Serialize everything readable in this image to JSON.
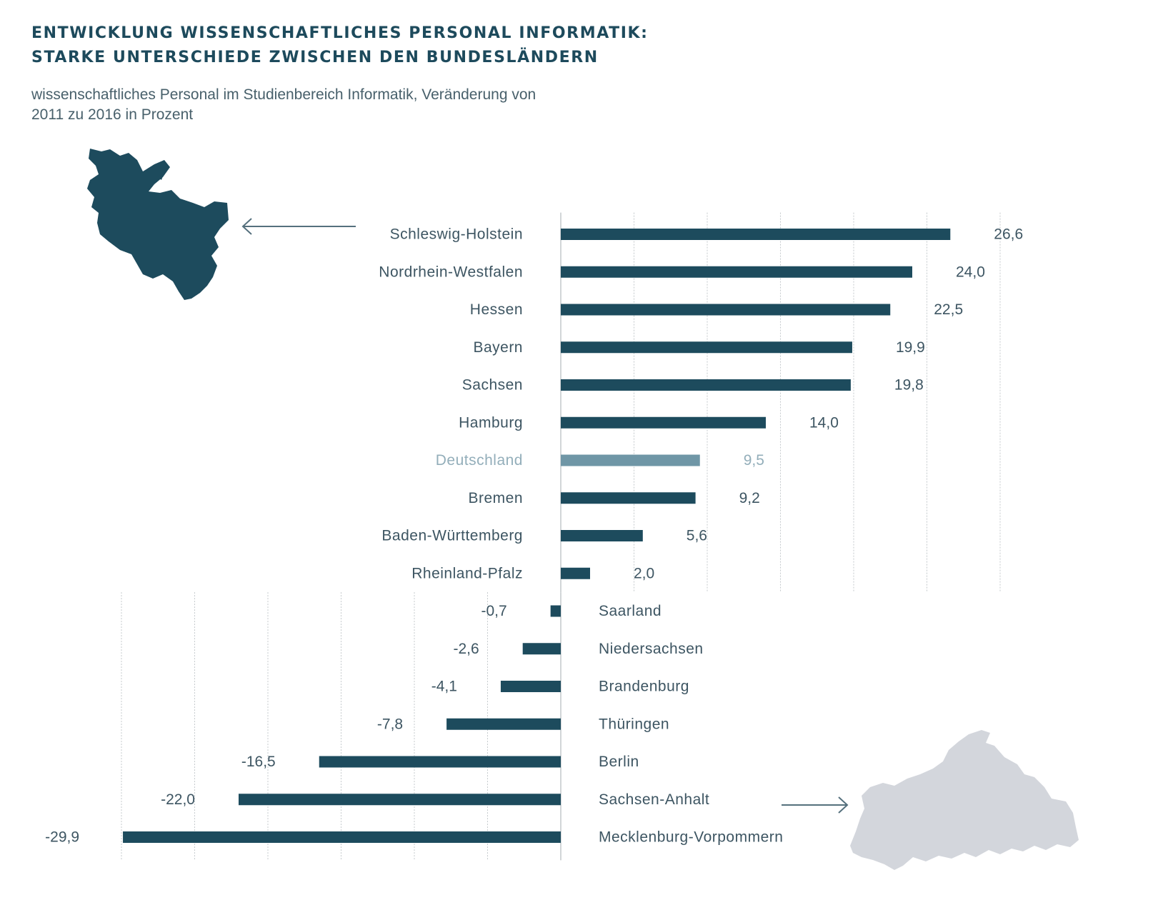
{
  "title_lines": [
    "ENTWICKLUNG WISSENSCHAFTLICHES PERSONAL INFORMATIK:",
    "STARKE UNTERSCHIEDE ZWISCHEN DEN BUNDESLÄNDERN"
  ],
  "subtitle_lines": [
    "wissenschaftliches Personal im Studienbereich Informatik, Veränderung von",
    "2011 zu 2016 in Prozent"
  ],
  "colors": {
    "bar": "#1d4b5d",
    "bar_highlight": "#6f96a6",
    "label": "#3d5562",
    "label_highlight": "#93aeba",
    "grid": "#c4c9cc",
    "map_positive": "#1d4b5d",
    "map_negative": "#d3d6dc",
    "arrow": "#55707d"
  },
  "icons": {
    "positive_map": "schleswig-holstein-map-icon",
    "negative_map": "mecklenburg-vorpommern-map-icon",
    "left_arrow": "arrow-left-icon",
    "right_arrow": "arrow-right-icon"
  },
  "chart_data": {
    "type": "bar",
    "orientation": "horizontal",
    "categories": [
      "Schleswig-Holstein",
      "Nordrhein-Westfalen",
      "Hessen",
      "Bayern",
      "Sachsen",
      "Hamburg",
      "Deutschland",
      "Bremen",
      "Baden-Württemberg",
      "Rheinland-Pfalz",
      "Saarland",
      "Niedersachsen",
      "Brandenburg",
      "Thüringen",
      "Berlin",
      "Sachsen-Anhalt",
      "Mecklenburg-Vorpommern"
    ],
    "values": [
      26.6,
      24.0,
      22.5,
      19.9,
      19.8,
      14.0,
      9.5,
      9.2,
      5.6,
      2.0,
      -0.7,
      -2.6,
      -4.1,
      -7.8,
      -16.5,
      -22.0,
      -29.9
    ],
    "value_labels": [
      "26,6",
      "24,0",
      "22,5",
      "19,9",
      "19,8",
      "14,0",
      "9,5",
      "9,2",
      "5,6",
      "2,0",
      "-0,7",
      "-2,6",
      "-4,1",
      "-7,8",
      "-16,5",
      "-22,0",
      "-29,9"
    ],
    "highlight": "Deutschland",
    "xlim": [
      -30,
      30
    ],
    "grid_step": 5,
    "grid": true,
    "title": "ENTWICKLUNG WISSENSCHAFTLICHES PERSONAL INFORMATIK: STARKE UNTERSCHIEDE ZWISCHEN DEN BUNDESLÄNDERN",
    "subtitle": "wissenschaftliches Personal im Studienbereich Informatik, Veränderung von 2011 zu 2016 in Prozent",
    "xlabel": "",
    "ylabel": ""
  }
}
